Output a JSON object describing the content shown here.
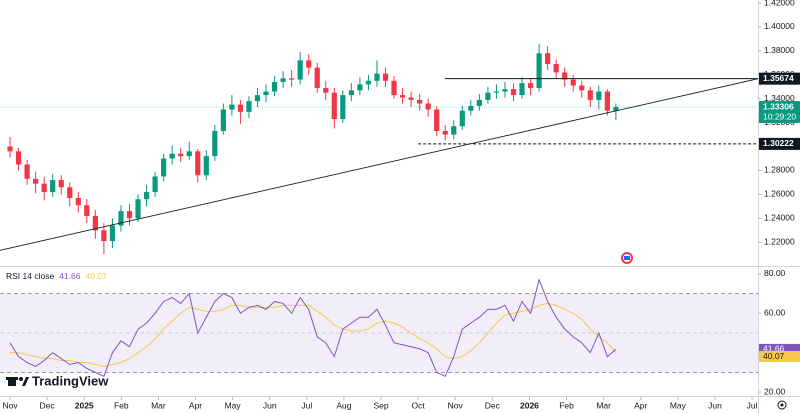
{
  "chart_data": [
    {
      "type": "candlestick",
      "watermark": "TradingView",
      "x": [
        0,
        0.23,
        0.46,
        0.69,
        0.92,
        1.15,
        1.38,
        1.61,
        1.84,
        2.07,
        2.3,
        2.53,
        2.76,
        2.99,
        3.22,
        3.45,
        3.68,
        3.91,
        4.14,
        4.37,
        4.6,
        4.83,
        5.06,
        5.29,
        5.52,
        5.75,
        5.98,
        6.21,
        6.44,
        6.67,
        6.9,
        7.13,
        7.36,
        7.59,
        7.82,
        8.05,
        8.28,
        8.51,
        8.74,
        8.97,
        9.2,
        9.43,
        9.66,
        9.89,
        10.12,
        10.35,
        10.58,
        10.81,
        11.04,
        11.27,
        11.5,
        11.73,
        11.96,
        12.19,
        12.42,
        12.65,
        12.88,
        13.11,
        13.34,
        13.57,
        13.8,
        14.03,
        14.26,
        14.49,
        14.72,
        14.95,
        15.18,
        15.41,
        15.64,
        15.87,
        16.1,
        16.33
      ],
      "open": [
        1.3,
        1.296,
        1.285,
        1.273,
        1.269,
        1.262,
        1.272,
        1.266,
        1.257,
        1.251,
        1.242,
        1.23,
        1.221,
        1.234,
        1.246,
        1.24,
        1.256,
        1.262,
        1.275,
        1.29,
        1.294,
        1.292,
        1.296,
        1.276,
        1.292,
        1.313,
        1.331,
        1.335,
        1.329,
        1.338,
        1.343,
        1.346,
        1.354,
        1.357,
        1.356,
        1.372,
        1.366,
        1.349,
        1.345,
        1.323,
        1.343,
        1.347,
        1.352,
        1.355,
        1.361,
        1.355,
        1.343,
        1.341,
        1.339,
        1.336,
        1.331,
        1.313,
        1.31,
        1.317,
        1.33,
        1.334,
        1.339,
        1.345,
        1.346,
        1.348,
        1.343,
        1.353,
        1.349,
        1.378,
        1.369,
        1.362,
        1.356,
        1.351,
        1.347,
        1.339,
        1.346,
        1.33
      ],
      "high": [
        1.308,
        1.299,
        1.289,
        1.279,
        1.275,
        1.277,
        1.276,
        1.27,
        1.262,
        1.256,
        1.247,
        1.236,
        1.24,
        1.251,
        1.252,
        1.26,
        1.268,
        1.279,
        1.294,
        1.301,
        1.299,
        1.304,
        1.298,
        1.297,
        1.318,
        1.336,
        1.343,
        1.339,
        1.342,
        1.349,
        1.352,
        1.359,
        1.363,
        1.364,
        1.379,
        1.377,
        1.37,
        1.355,
        1.349,
        1.347,
        1.353,
        1.358,
        1.36,
        1.372,
        1.366,
        1.359,
        1.349,
        1.346,
        1.344,
        1.34,
        1.334,
        1.318,
        1.322,
        1.334,
        1.339,
        1.344,
        1.35,
        1.352,
        1.354,
        1.353,
        1.358,
        1.357,
        1.386,
        1.384,
        1.373,
        1.366,
        1.36,
        1.355,
        1.35,
        1.351,
        1.348,
        1.336
      ],
      "low": [
        1.291,
        1.28,
        1.268,
        1.261,
        1.255,
        1.258,
        1.26,
        1.25,
        1.245,
        1.236,
        1.223,
        1.21,
        1.215,
        1.229,
        1.234,
        1.237,
        1.25,
        1.258,
        1.271,
        1.285,
        1.287,
        1.289,
        1.27,
        1.272,
        1.288,
        1.31,
        1.326,
        1.319,
        1.324,
        1.333,
        1.337,
        1.342,
        1.349,
        1.35,
        1.352,
        1.36,
        1.345,
        1.339,
        1.315,
        1.32,
        1.338,
        1.343,
        1.347,
        1.35,
        1.35,
        1.34,
        1.336,
        1.333,
        1.33,
        1.325,
        1.309,
        1.305,
        1.306,
        1.314,
        1.326,
        1.33,
        1.336,
        1.34,
        1.341,
        1.338,
        1.34,
        1.343,
        1.346,
        1.364,
        1.357,
        1.35,
        1.346,
        1.341,
        1.333,
        1.331,
        1.326,
        1.322
      ],
      "close": [
        1.296,
        1.285,
        1.273,
        1.269,
        1.262,
        1.272,
        1.266,
        1.257,
        1.251,
        1.242,
        1.23,
        1.221,
        1.234,
        1.246,
        1.24,
        1.256,
        1.262,
        1.275,
        1.29,
        1.294,
        1.292,
        1.296,
        1.276,
        1.292,
        1.313,
        1.331,
        1.335,
        1.329,
        1.338,
        1.343,
        1.346,
        1.354,
        1.357,
        1.356,
        1.372,
        1.366,
        1.349,
        1.345,
        1.323,
        1.343,
        1.347,
        1.352,
        1.355,
        1.361,
        1.355,
        1.343,
        1.341,
        1.339,
        1.336,
        1.331,
        1.313,
        1.31,
        1.317,
        1.33,
        1.334,
        1.339,
        1.345,
        1.346,
        1.348,
        1.343,
        1.353,
        1.349,
        1.378,
        1.369,
        1.362,
        1.356,
        1.351,
        1.347,
        1.339,
        1.346,
        1.33,
        1.33306
      ],
      "up_color": "#089981",
      "down_color": "#f23645",
      "countdown": "10:29:20",
      "xlim": [
        -0.27,
        20.16
      ],
      "xticks": [
        {
          "value": 0,
          "label": "Nov"
        },
        {
          "value": 1,
          "label": "Dec"
        },
        {
          "value": 2,
          "label": "2025"
        },
        {
          "value": 3,
          "label": "Feb"
        },
        {
          "value": 4,
          "label": "Mar"
        },
        {
          "value": 5,
          "label": "Apr"
        },
        {
          "value": 6,
          "label": "May"
        },
        {
          "value": 7,
          "label": "Jun"
        },
        {
          "value": 8,
          "label": "Jul"
        },
        {
          "value": 9,
          "label": "Aug"
        },
        {
          "value": 10,
          "label": "Sep"
        },
        {
          "value": 11,
          "label": "Oct"
        },
        {
          "value": 12,
          "label": "Nov"
        },
        {
          "value": 13,
          "label": "Dec"
        },
        {
          "value": 14,
          "label": "2026"
        },
        {
          "value": 15,
          "label": "Feb"
        },
        {
          "value": 16,
          "label": "Mar"
        },
        {
          "value": 17,
          "label": "Apr"
        },
        {
          "value": 18,
          "label": "May"
        },
        {
          "value": 19,
          "label": "Jun"
        },
        {
          "value": 20,
          "label": "Jul"
        }
      ],
      "ylim": [
        1.201,
        1.4225
      ],
      "yticks": [
        {
          "value": 1.22,
          "label": "1.22000"
        },
        {
          "value": 1.24,
          "label": "1.24000"
        },
        {
          "value": 1.26,
          "label": "1.26000"
        },
        {
          "value": 1.28,
          "label": "1.28000"
        },
        {
          "value": 1.3,
          "label": "1.30000"
        },
        {
          "value": 1.32,
          "label": "1.32000"
        },
        {
          "value": 1.34,
          "label": "1.34000"
        },
        {
          "value": 1.36,
          "label": "1.36000"
        },
        {
          "value": 1.38,
          "label": "1.38000"
        },
        {
          "value": 1.4,
          "label": "1.40000"
        },
        {
          "value": 1.42,
          "label": "1.42000"
        }
      ],
      "levels": [
        {
          "value": 1.35674,
          "x_start": 11.72,
          "style": "solid"
        },
        {
          "value": 1.30222,
          "x_start": 11.0,
          "style": "dashed"
        }
      ],
      "trendline": {
        "x": [
          -0.27,
          20.16
        ],
        "y": [
          1.2133,
          1.3567
        ]
      }
    },
    {
      "type": "line",
      "title": "RSI 14 close",
      "series": [
        {
          "color": "#7e57c2",
          "values": [
            45,
            38,
            35,
            33,
            36,
            40,
            37,
            34,
            35,
            32,
            30,
            28,
            40,
            46,
            43,
            52,
            55,
            60,
            66,
            68,
            65,
            70,
            50,
            58,
            66,
            70,
            68,
            60,
            63,
            64,
            62,
            66,
            65,
            60,
            68,
            62,
            48,
            45,
            38,
            52,
            55,
            58,
            58,
            62,
            54,
            45,
            44,
            43,
            42,
            40,
            30,
            28,
            38,
            52,
            55,
            58,
            62,
            62,
            64,
            56,
            66,
            60,
            77,
            66,
            58,
            52,
            48,
            45,
            40,
            50,
            38,
            41.66
          ]
        },
        {
          "color": "#f7c948",
          "values": [
            40,
            40,
            39,
            38,
            37,
            37,
            36,
            36,
            35,
            35,
            34,
            33,
            34,
            35,
            37,
            40,
            43,
            47,
            52,
            56,
            60,
            63,
            62,
            61,
            61,
            62,
            64,
            64,
            63,
            63,
            63,
            63,
            64,
            64,
            64,
            64,
            61,
            58,
            54,
            52,
            51,
            51,
            52,
            55,
            56,
            55,
            53,
            50,
            47,
            45,
            42,
            38,
            37,
            38,
            41,
            45,
            50,
            55,
            59,
            60,
            61,
            62,
            64,
            65,
            64,
            62,
            60,
            57,
            52,
            48,
            45,
            40.07
          ]
        }
      ],
      "bands": [
        30,
        70
      ],
      "midline": 50,
      "ylim": [
        18.5,
        83
      ],
      "yticks": [
        {
          "value": 20,
          "label": "20.00"
        },
        {
          "value": 40,
          "label": "40.00"
        },
        {
          "value": 60,
          "label": "60.00"
        },
        {
          "value": 80,
          "label": "80.00"
        }
      ]
    }
  ]
}
